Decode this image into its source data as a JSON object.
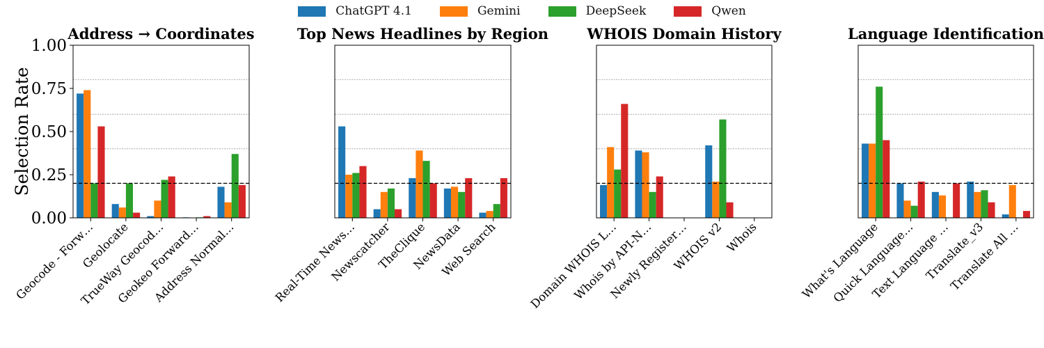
{
  "legend": {
    "series": [
      {
        "name": "ChatGPT 4.1",
        "color": "#1f77b4"
      },
      {
        "name": "Gemini",
        "color": "#ff7f0e"
      },
      {
        "name": "DeepSeek",
        "color": "#2ca02c"
      },
      {
        "name": "Qwen",
        "color": "#d62728"
      }
    ]
  },
  "chart_data": [
    {
      "type": "bar",
      "title": "Address → Coordinates",
      "ylabel": "Selection Rate",
      "ylim": [
        0,
        1
      ],
      "yticks": [
        "0.00",
        "0.25",
        "0.50",
        "0.75",
        "1.00"
      ],
      "reference_line": 0.2,
      "grid": "horizontal dotted",
      "categories": [
        "Geocode - Forw…",
        "Geolocate",
        "TrueWay Geocod…",
        "Geokeo Forward…",
        "Address Normal…"
      ],
      "series": [
        {
          "name": "ChatGPT 4.1",
          "values": [
            0.72,
            0.08,
            0.01,
            0.003,
            0.18
          ]
        },
        {
          "name": "Gemini",
          "values": [
            0.74,
            0.06,
            0.1,
            0.0,
            0.09
          ]
        },
        {
          "name": "DeepSeek",
          "values": [
            0.2,
            0.2,
            0.22,
            0.003,
            0.37
          ]
        },
        {
          "name": "Qwen",
          "values": [
            0.53,
            0.03,
            0.24,
            0.01,
            0.19
          ]
        }
      ]
    },
    {
      "type": "bar",
      "title": "Top News Headlines by Region",
      "ylim": [
        0,
        1
      ],
      "reference_line": 0.2,
      "grid": "horizontal dotted",
      "categories": [
        "Real-Time News…",
        "Newscatcher",
        "TheClique",
        "NewsData",
        "Web Search"
      ],
      "series": [
        {
          "name": "ChatGPT 4.1",
          "values": [
            0.53,
            0.05,
            0.23,
            0.17,
            0.03
          ]
        },
        {
          "name": "Gemini",
          "values": [
            0.25,
            0.15,
            0.39,
            0.18,
            0.04
          ]
        },
        {
          "name": "DeepSeek",
          "values": [
            0.26,
            0.17,
            0.33,
            0.15,
            0.08
          ]
        },
        {
          "name": "Qwen",
          "values": [
            0.3,
            0.05,
            0.2,
            0.23,
            0.23
          ]
        }
      ]
    },
    {
      "type": "bar",
      "title": "WHOIS Domain History",
      "ylim": [
        0,
        1
      ],
      "reference_line": 0.2,
      "grid": "horizontal dotted",
      "categories": [
        "Domain WHOIS L…",
        "Whois by API-N…",
        "Newly Register…",
        "WHOIS v2",
        "Whois"
      ],
      "series": [
        {
          "name": "ChatGPT 4.1",
          "values": [
            0.19,
            0.39,
            0.0,
            0.42,
            0.0
          ]
        },
        {
          "name": "Gemini",
          "values": [
            0.41,
            0.38,
            0.0,
            0.21,
            0.0
          ]
        },
        {
          "name": "DeepSeek",
          "values": [
            0.28,
            0.15,
            0.0,
            0.57,
            0.0
          ]
        },
        {
          "name": "Qwen",
          "values": [
            0.66,
            0.24,
            0.0,
            0.09,
            0.0
          ]
        }
      ]
    },
    {
      "type": "bar",
      "title": "Language Identification",
      "ylim": [
        0,
        1
      ],
      "reference_line": 0.2,
      "grid": "horizontal dotted",
      "categories": [
        "What's Language",
        "Quick Language…",
        "Text Language …",
        "Translate_v3",
        "Translate All …"
      ],
      "series": [
        {
          "name": "ChatGPT 4.1",
          "values": [
            0.43,
            0.2,
            0.15,
            0.21,
            0.02
          ]
        },
        {
          "name": "Gemini",
          "values": [
            0.43,
            0.1,
            0.13,
            0.15,
            0.19
          ]
        },
        {
          "name": "DeepSeek",
          "values": [
            0.76,
            0.07,
            0.003,
            0.16,
            0.003
          ]
        },
        {
          "name": "Qwen",
          "values": [
            0.45,
            0.21,
            0.2,
            0.09,
            0.04
          ]
        }
      ]
    }
  ]
}
